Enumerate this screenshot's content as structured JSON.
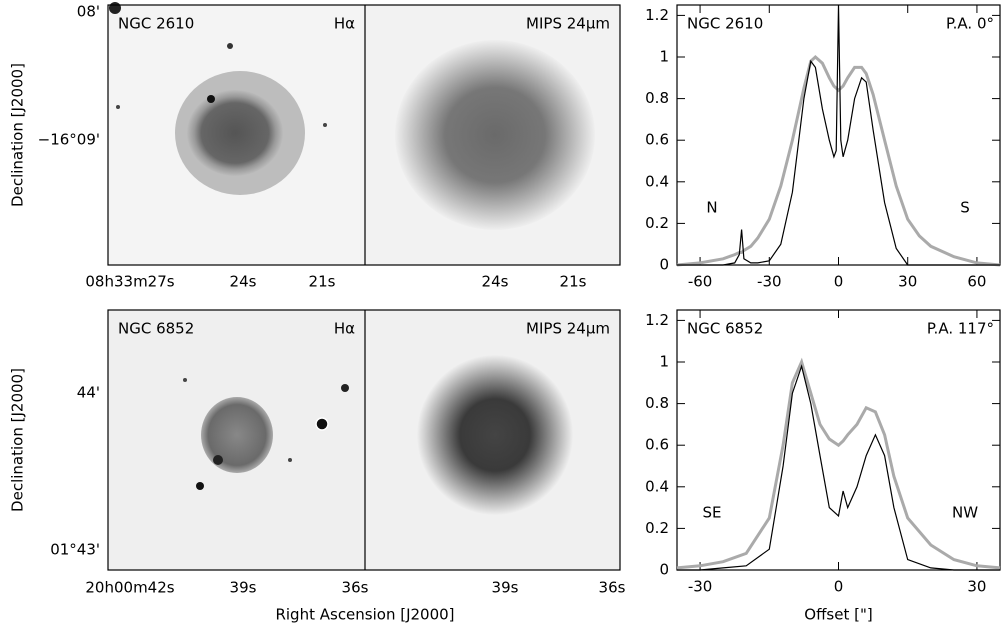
{
  "image_rows": [
    {
      "object": "NGC 2610",
      "line_filter": "Hα",
      "ir_filter": "MIPS 24μm",
      "dec_labels": [
        "08'",
        "−16°09'"
      ],
      "ra_labels_left": [
        "08h33m27s",
        "24s",
        "21s"
      ],
      "ra_labels_right": [
        "24s",
        "21s"
      ]
    },
    {
      "object": "NGC 6852",
      "line_filter": "Hα",
      "ir_filter": "MIPS 24μm",
      "dec_labels": [
        "44'",
        "01°43'"
      ],
      "ra_labels_left": [
        "20h00m42s",
        "39s",
        "36s"
      ],
      "ra_labels_right": [
        "39s",
        "36s"
      ]
    }
  ],
  "image_ylabel": "Declination [J2000]",
  "image_xlabel": "Right Ascension [J2000]",
  "chart_data": [
    {
      "type": "line",
      "title": "NGC 2610",
      "annotation": "P.A. 0°",
      "left_label": "N",
      "right_label": "S",
      "x": [
        -70,
        -60,
        -50,
        -45,
        -43,
        -42,
        -41,
        -38,
        -35,
        -30,
        -25,
        -20,
        -15,
        -12,
        -10,
        -7,
        -4,
        -2,
        -1,
        0,
        1,
        2,
        4,
        7,
        10,
        12,
        15,
        20,
        25,
        30,
        35,
        40,
        50,
        60,
        70
      ],
      "series": [
        {
          "color": "#aaaaaa",
          "values": [
            0,
            0.01,
            0.03,
            0.05,
            0.06,
            0.06,
            0.07,
            0.09,
            0.13,
            0.22,
            0.38,
            0.6,
            0.85,
            0.98,
            1.0,
            0.97,
            0.9,
            0.86,
            0.85,
            0.84,
            0.85,
            0.86,
            0.9,
            0.95,
            0.95,
            0.92,
            0.82,
            0.6,
            0.38,
            0.22,
            0.14,
            0.09,
            0.04,
            0.01,
            0
          ]
        },
        {
          "color": "#000000",
          "values": [
            0,
            0,
            0,
            0.01,
            0.05,
            0.17,
            0.03,
            0.01,
            0.01,
            0.02,
            0.1,
            0.35,
            0.8,
            0.98,
            0.95,
            0.75,
            0.6,
            0.52,
            0.55,
            1.25,
            0.6,
            0.52,
            0.6,
            0.8,
            0.9,
            0.88,
            0.65,
            0.3,
            0.08,
            0,
            0,
            0,
            0,
            0,
            0
          ]
        }
      ],
      "xlim": [
        -70,
        70
      ],
      "xticks": [
        -60,
        -30,
        0,
        30,
        60
      ],
      "ylim": [
        0,
        1.25
      ],
      "yticks": [
        0,
        0.2,
        0.4,
        0.6,
        0.8,
        1,
        1.2
      ]
    },
    {
      "type": "line",
      "title": "NGC 6852",
      "annotation": "P.A. 117°",
      "left_label": "SE",
      "right_label": "NW",
      "xlabel": "Offset [\"]",
      "x": [
        -35,
        -30,
        -25,
        -20,
        -15,
        -12,
        -10,
        -8,
        -6,
        -4,
        -2,
        0,
        1,
        2,
        4,
        6,
        8,
        10,
        12,
        15,
        20,
        25,
        30,
        35
      ],
      "series": [
        {
          "color": "#aaaaaa",
          "values": [
            0.01,
            0.02,
            0.04,
            0.08,
            0.25,
            0.6,
            0.9,
            1.0,
            0.85,
            0.7,
            0.63,
            0.6,
            0.62,
            0.65,
            0.7,
            0.78,
            0.76,
            0.65,
            0.45,
            0.25,
            0.12,
            0.05,
            0.02,
            0.01
          ]
        },
        {
          "color": "#000000",
          "values": [
            0,
            0,
            0.01,
            0.02,
            0.1,
            0.5,
            0.85,
            0.98,
            0.8,
            0.55,
            0.3,
            0.26,
            0.38,
            0.3,
            0.4,
            0.55,
            0.65,
            0.55,
            0.3,
            0.05,
            0.01,
            0,
            0,
            0
          ]
        }
      ],
      "xlim": [
        -35,
        35
      ],
      "xticks": [
        -30,
        0,
        30
      ],
      "ylim": [
        0,
        1.25
      ],
      "yticks": [
        0,
        0.2,
        0.4,
        0.6,
        0.8,
        1,
        1.2
      ]
    }
  ]
}
